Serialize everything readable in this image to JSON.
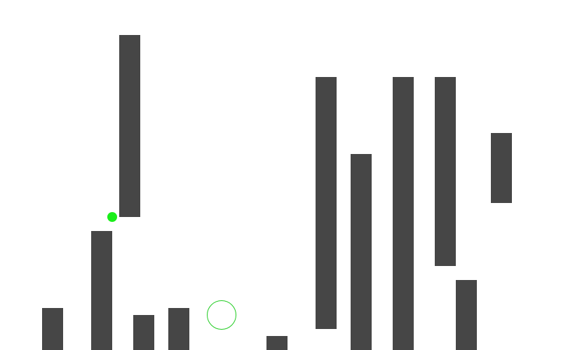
{
  "colors": {
    "background": "#ffffff",
    "wall": "#464646",
    "player": "#1aee1a",
    "goal_ring": "#22cc22"
  },
  "objects": {
    "walls_count": 12,
    "player_icon": "green-dot",
    "goal_icon": "target-ring"
  }
}
